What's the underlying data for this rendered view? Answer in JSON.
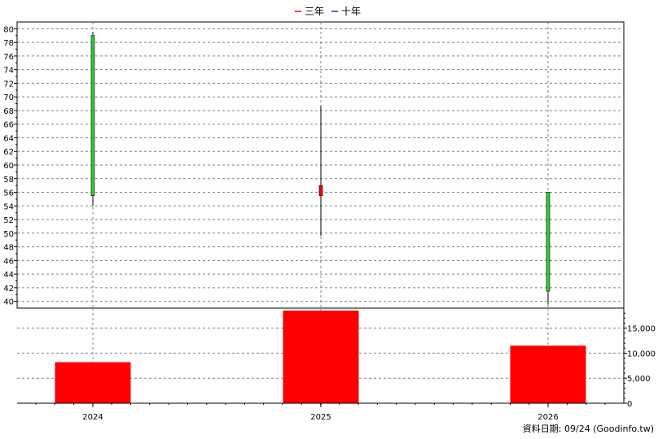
{
  "chart_data": [
    {
      "type": "candlestick",
      "categories": [
        "2024",
        "2025",
        "2026"
      ],
      "series": [
        {
          "name": "三年",
          "color": "#ff0000"
        },
        {
          "name": "十年",
          "color": "#6a0dad"
        }
      ],
      "candles": [
        {
          "x": "2024",
          "open": 55.5,
          "close": 79.0,
          "high": 79.5,
          "low": 54.0,
          "color": "#33cc33"
        },
        {
          "x": "2025",
          "open": 57.0,
          "close": 55.5,
          "high": 68.7,
          "low": 49.6,
          "color": "#ff0000"
        },
        {
          "x": "2026",
          "open": 41.5,
          "close": 56.0,
          "high": 56.0,
          "low": 39.5,
          "color": "#33cc33"
        }
      ],
      "ylim": [
        39,
        81
      ],
      "yticks": [
        "40",
        "42",
        "44",
        "46",
        "48",
        "50",
        "52",
        "54",
        "56",
        "58",
        "60",
        "62",
        "64",
        "66",
        "68",
        "70",
        "72",
        "74",
        "76",
        "78",
        "80"
      ],
      "grid": true,
      "legend_placement": "top-center"
    },
    {
      "type": "bar",
      "categories": [
        "2024",
        "2025",
        "2026"
      ],
      "values": [
        8200,
        18500,
        11500
      ],
      "bar_color": "#ff0000",
      "ylim": [
        0,
        19000
      ],
      "yticks": [
        "0",
        "5,000",
        "10,000",
        "15,000"
      ],
      "grid": true
    }
  ],
  "footer": {
    "text": "資料日期: 09/24  (Goodinfo.tw)"
  }
}
